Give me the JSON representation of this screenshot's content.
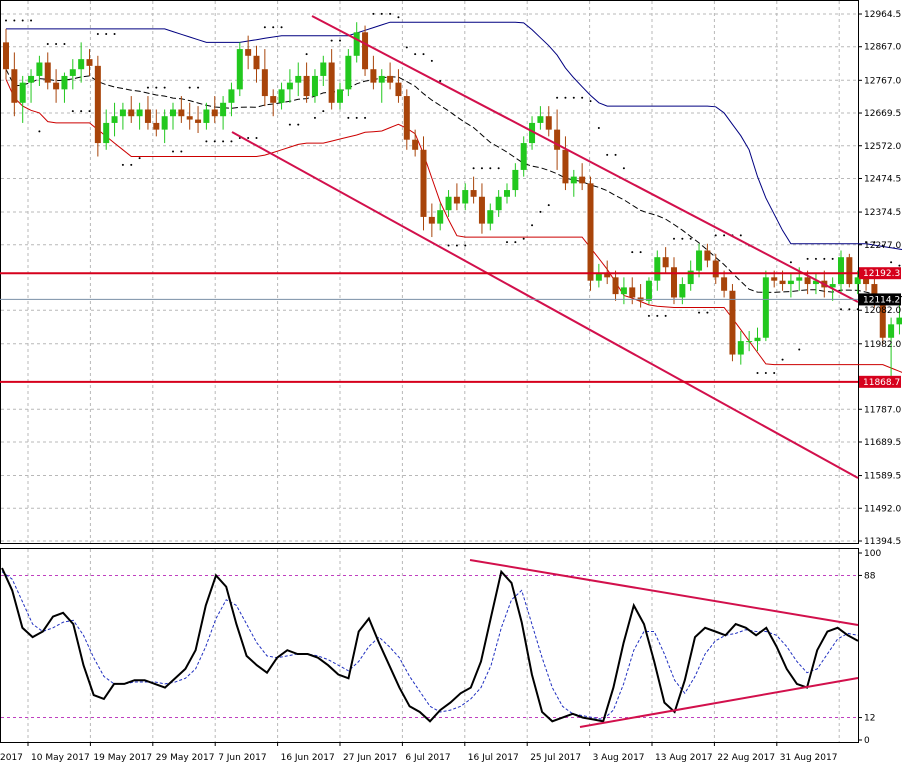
{
  "chart_data": [
    {
      "type": "candlestick",
      "panel": "price",
      "y_ticks": [
        12964.5,
        12867.0,
        12767.0,
        12669.5,
        12572.0,
        12474.5,
        12374.5,
        12277.0,
        12082.0,
        11982.0,
        11787.0,
        11689.5,
        11589.5,
        11492.0,
        11394.5
      ],
      "ylim": [
        11394.5,
        12964.5
      ],
      "horizontal_levels": [
        {
          "value": 12192.3,
          "label": "12192.3",
          "color": "#d6001c"
        },
        {
          "value": 11868.7,
          "label": "11868.7",
          "color": "#d6001c"
        }
      ],
      "current_price": {
        "value": 12114.2,
        "label": "12114.2"
      },
      "candle_colors": {
        "up": "#22c81e",
        "down": "#a8440a"
      },
      "candles": [
        [
          12880,
          12920,
          12770,
          12800
        ],
        [
          12800,
          12850,
          12660,
          12700
        ],
        [
          12700,
          12780,
          12640,
          12760
        ],
        [
          12760,
          12800,
          12700,
          12780
        ],
        [
          12780,
          12840,
          12750,
          12820
        ],
        [
          12820,
          12850,
          12740,
          12760
        ],
        [
          12760,
          12800,
          12700,
          12740
        ],
        [
          12740,
          12790,
          12700,
          12780
        ],
        [
          12780,
          12830,
          12740,
          12800
        ],
        [
          12800,
          12880,
          12760,
          12830
        ],
        [
          12830,
          12860,
          12780,
          12810
        ],
        [
          12810,
          12840,
          12540,
          12580
        ],
        [
          12580,
          12680,
          12560,
          12640
        ],
        [
          12640,
          12700,
          12600,
          12660
        ],
        [
          12660,
          12700,
          12620,
          12680
        ],
        [
          12680,
          12720,
          12640,
          12660
        ],
        [
          12660,
          12700,
          12620,
          12680
        ],
        [
          12680,
          12720,
          12620,
          12640
        ],
        [
          12640,
          12680,
          12600,
          12620
        ],
        [
          12620,
          12680,
          12580,
          12660
        ],
        [
          12660,
          12700,
          12620,
          12680
        ],
        [
          12680,
          12720,
          12640,
          12660
        ],
        [
          12660,
          12700,
          12620,
          12650
        ],
        [
          12650,
          12690,
          12610,
          12640
        ],
        [
          12640,
          12700,
          12620,
          12680
        ],
        [
          12680,
          12720,
          12640,
          12660
        ],
        [
          12660,
          12720,
          12620,
          12700
        ],
        [
          12700,
          12760,
          12660,
          12740
        ],
        [
          12740,
          12880,
          12720,
          12860
        ],
        [
          12860,
          12900,
          12800,
          12840
        ],
        [
          12840,
          12870,
          12760,
          12800
        ],
        [
          12800,
          12860,
          12690,
          12720
        ],
        [
          12720,
          12740,
          12660,
          12700
        ],
        [
          12700,
          12760,
          12680,
          12740
        ],
        [
          12740,
          12800,
          12700,
          12760
        ],
        [
          12760,
          12820,
          12720,
          12780
        ],
        [
          12780,
          12820,
          12700,
          12720
        ],
        [
          12720,
          12800,
          12700,
          12780
        ],
        [
          12780,
          12840,
          12750,
          12820
        ],
        [
          12820,
          12860,
          12680,
          12700
        ],
        [
          12700,
          12760,
          12680,
          12740
        ],
        [
          12740,
          12860,
          12720,
          12840
        ],
        [
          12840,
          12940,
          12820,
          12910
        ],
        [
          12910,
          12930,
          12780,
          12800
        ],
        [
          12800,
          12840,
          12740,
          12760
        ],
        [
          12760,
          12800,
          12700,
          12780
        ],
        [
          12780,
          12820,
          12740,
          12760
        ],
        [
          12760,
          12800,
          12700,
          12720
        ],
        [
          12720,
          12740,
          12560,
          12590
        ],
        [
          12590,
          12620,
          12540,
          12560
        ],
        [
          12560,
          12600,
          12320,
          12360
        ],
        [
          12360,
          12400,
          12300,
          12340
        ],
        [
          12340,
          12400,
          12320,
          12380
        ],
        [
          12380,
          12440,
          12360,
          12420
        ],
        [
          12420,
          12460,
          12380,
          12400
        ],
        [
          12400,
          12460,
          12380,
          12440
        ],
        [
          12440,
          12480,
          12400,
          12420
        ],
        [
          12420,
          12460,
          12310,
          12340
        ],
        [
          12340,
          12400,
          12320,
          12380
        ],
        [
          12380,
          12440,
          12360,
          12420
        ],
        [
          12420,
          12460,
          12400,
          12440
        ],
        [
          12440,
          12520,
          12420,
          12500
        ],
        [
          12500,
          12600,
          12480,
          12580
        ],
        [
          12580,
          12660,
          12560,
          12640
        ],
        [
          12640,
          12690,
          12620,
          12660
        ],
        [
          12660,
          12690,
          12600,
          12620
        ],
        [
          12620,
          12680,
          12500,
          12560
        ],
        [
          12560,
          12600,
          12440,
          12460
        ],
        [
          12460,
          12500,
          12420,
          12480
        ],
        [
          12480,
          12520,
          12440,
          12460
        ],
        [
          12460,
          12480,
          12140,
          12170
        ],
        [
          12170,
          12220,
          12150,
          12190
        ],
        [
          12190,
          12230,
          12160,
          12180
        ],
        [
          12180,
          12200,
          12110,
          12130
        ],
        [
          12130,
          12180,
          12100,
          12150
        ],
        [
          12150,
          12180,
          12100,
          12120
        ],
        [
          12120,
          12160,
          12090,
          12110
        ],
        [
          12110,
          12180,
          12100,
          12170
        ],
        [
          12170,
          12260,
          12140,
          12240
        ],
        [
          12240,
          12270,
          12190,
          12210
        ],
        [
          12210,
          12240,
          12100,
          12120
        ],
        [
          12120,
          12180,
          12100,
          12160
        ],
        [
          12160,
          12230,
          12140,
          12200
        ],
        [
          12200,
          12280,
          12180,
          12260
        ],
        [
          12260,
          12280,
          12210,
          12230
        ],
        [
          12230,
          12250,
          12160,
          12180
        ],
        [
          12180,
          12200,
          12120,
          12140
        ],
        [
          12140,
          12160,
          11930,
          11950
        ],
        [
          11950,
          12020,
          11920,
          11990
        ],
        [
          11990,
          12020,
          11960,
          11990
        ],
        [
          11990,
          12030,
          11960,
          12000
        ],
        [
          12000,
          12200,
          11990,
          12180
        ],
        [
          12180,
          12200,
          12150,
          12170
        ],
        [
          12170,
          12200,
          12140,
          12160
        ],
        [
          12160,
          12190,
          12120,
          12170
        ],
        [
          12170,
          12210,
          12140,
          12180
        ],
        [
          12180,
          12200,
          12130,
          12160
        ],
        [
          12160,
          12190,
          12130,
          12170
        ],
        [
          12170,
          12200,
          12120,
          12150
        ],
        [
          12150,
          12180,
          12110,
          12160
        ],
        [
          12160,
          12260,
          12130,
          12240
        ],
        [
          12240,
          12250,
          12150,
          12160
        ],
        [
          12160,
          12200,
          12130,
          12180
        ],
        [
          12180,
          12190,
          12140,
          12160
        ],
        [
          12160,
          12180,
          12090,
          12100
        ],
        [
          12100,
          12120,
          11980,
          12000
        ],
        [
          12000,
          12060,
          11870,
          12040
        ],
        [
          12040,
          12100,
          12010,
          12060
        ],
        [
          12060,
          12120,
          12040,
          12100
        ],
        [
          12100,
          12160,
          12080,
          12140
        ],
        [
          12140,
          12160,
          12080,
          12100
        ],
        [
          12100,
          12140,
          12060,
          12130
        ],
        [
          12130,
          12150,
          12080,
          12090
        ],
        [
          12090,
          12140,
          12070,
          12114
        ]
      ],
      "overlays": {
        "parabolic_sar_color": "#000000",
        "bands_color": "#000080",
        "envelope_color": "#cc0000",
        "ma_color": "#000000"
      },
      "x_tick_labels": [
        "10 May 2017",
        "19 May 2017",
        "29 May 2017",
        "7 Jun 2017",
        "16 Jun 2017",
        "27 Jun 2017",
        "6 Jul 2017",
        "16 Jul 2017",
        "25 Jul 2017",
        "3 Aug 2017",
        "13 Aug 2017",
        "22 Aug 2017",
        "31 Aug 2017"
      ],
      "x_tick_first_partial": "2017"
    },
    {
      "type": "line",
      "panel": "oscillator",
      "ylim": [
        0,
        100
      ],
      "y_ticks": [
        100,
        88,
        12,
        0
      ],
      "levels": [
        88,
        12
      ],
      "main_series": [
        92,
        80,
        60,
        55,
        58,
        66,
        68,
        62,
        40,
        24,
        22,
        30,
        30,
        32,
        32,
        30,
        28,
        33,
        38,
        48,
        72,
        88,
        82,
        62,
        45,
        40,
        36,
        44,
        48,
        46,
        46,
        44,
        40,
        35,
        33,
        58,
        65,
        52,
        40,
        28,
        18,
        15,
        10,
        16,
        20,
        25,
        28,
        42,
        66,
        90,
        84,
        63,
        35,
        15,
        10,
        12,
        14,
        12,
        11,
        10,
        28,
        52,
        72,
        62,
        42,
        20,
        15,
        32,
        55,
        60,
        58,
        56,
        62,
        60,
        56,
        60,
        50,
        38,
        30,
        28,
        48,
        58,
        60,
        56,
        53
      ],
      "signal_series": [
        90,
        86,
        74,
        62,
        58,
        60,
        63,
        64,
        56,
        44,
        34,
        30,
        30,
        31,
        31,
        31,
        30,
        31,
        33,
        38,
        50,
        65,
        75,
        72,
        62,
        52,
        45,
        44,
        45,
        46,
        46,
        45,
        43,
        40,
        37,
        42,
        50,
        55,
        50,
        44,
        34,
        26,
        18,
        15,
        16,
        18,
        22,
        28,
        40,
        60,
        75,
        80,
        62,
        44,
        28,
        18,
        14,
        13,
        12,
        11,
        16,
        30,
        48,
        58,
        58,
        46,
        32,
        25,
        34,
        46,
        53,
        56,
        57,
        59,
        58,
        58,
        56,
        50,
        42,
        36,
        38,
        46,
        54,
        57,
        56
      ]
    }
  ]
}
